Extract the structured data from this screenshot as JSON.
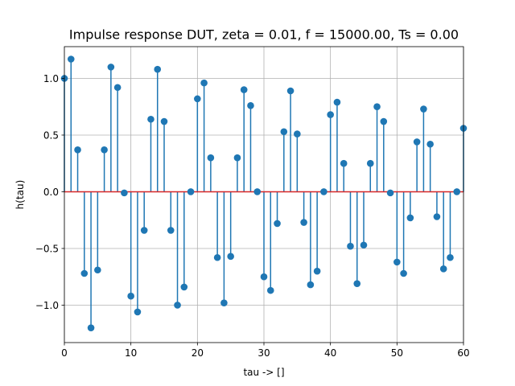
{
  "chart_data": {
    "type": "stem",
    "title": "Impulse response DUT, zeta = 0.01, f = 15000.00, Ts = 0.00",
    "xlabel": "tau -> []",
    "ylabel": "h(tau)",
    "xlim": [
      0,
      60
    ],
    "ylim": [
      -1.33,
      1.28
    ],
    "xticks": [
      "0",
      "10",
      "20",
      "30",
      "40",
      "50",
      "60"
    ],
    "yticks": [
      "1.0",
      "0.5",
      "0.0",
      "−0.5",
      "−1.0"
    ],
    "ytick_values": [
      1.0,
      0.5,
      0.0,
      -0.5,
      -1.0
    ],
    "xtick_values": [
      0,
      10,
      20,
      30,
      40,
      50,
      60
    ],
    "grid": true,
    "stem_color": "#1f77b4",
    "baseline_color": "#d62728",
    "x": [
      0,
      1,
      2,
      3,
      4,
      5,
      6,
      7,
      8,
      9,
      10,
      11,
      12,
      13,
      14,
      15,
      16,
      17,
      18,
      19,
      20,
      21,
      22,
      23,
      24,
      25,
      26,
      27,
      28,
      29,
      30,
      31,
      32,
      33,
      34,
      35,
      36,
      37,
      38,
      39,
      40,
      41,
      42,
      43,
      44,
      45,
      46,
      47,
      48,
      49,
      50,
      51,
      52,
      53,
      54,
      55,
      56,
      57,
      58,
      59,
      60
    ],
    "values": [
      1.0,
      1.17,
      0.37,
      -0.72,
      -1.2,
      -0.69,
      0.37,
      1.1,
      0.92,
      -0.01,
      -0.92,
      -1.06,
      -0.34,
      0.64,
      1.08,
      0.62,
      -0.34,
      -1.0,
      -0.84,
      0.0,
      0.82,
      0.96,
      0.3,
      -0.58,
      -0.98,
      -0.57,
      0.3,
      0.9,
      0.76,
      0.0,
      -0.75,
      -0.87,
      -0.28,
      0.53,
      0.89,
      0.51,
      -0.27,
      -0.82,
      -0.7,
      0.0,
      0.68,
      0.79,
      0.25,
      -0.48,
      -0.81,
      -0.47,
      0.25,
      0.75,
      0.62,
      -0.01,
      -0.62,
      -0.72,
      -0.23,
      0.44,
      0.73,
      0.42,
      -0.22,
      -0.68,
      -0.58,
      0.0,
      0.56
    ]
  }
}
